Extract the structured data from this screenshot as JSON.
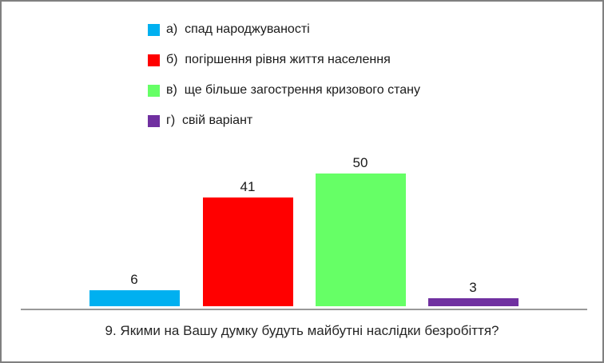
{
  "window": {
    "background": "#ffffff",
    "border_color": "#808080"
  },
  "chart_data": {
    "type": "bar",
    "title": "9. Якими на Вашу думку будуть майбутні наслідки безробіття?",
    "categories": [
      "а)  спад народжуваності",
      "б)  погіршення рівня життя населення",
      "в)  ще більше загострення кризового стану",
      "г)  свій варіант"
    ],
    "values": [
      6,
      41,
      50,
      3
    ],
    "data_labels": [
      "6",
      "41",
      "50",
      "3"
    ],
    "colors": [
      "#00B0F0",
      "#FF0000",
      "#66FF66",
      "#7030A0"
    ],
    "ylim": [
      0,
      50
    ],
    "grid": false,
    "axis_line_color": "#999999",
    "legend": {
      "position": "top",
      "entries": [
        {
          "label": "а)  спад народжуваності",
          "color": "#00B0F0"
        },
        {
          "label": "б)  погіршення рівня життя населення",
          "color": "#FF0000"
        },
        {
          "label": "в)  ще більше загострення кризового стану",
          "color": "#66FF66"
        },
        {
          "label": "г)  свій варіант",
          "color": "#7030A0"
        }
      ]
    }
  }
}
